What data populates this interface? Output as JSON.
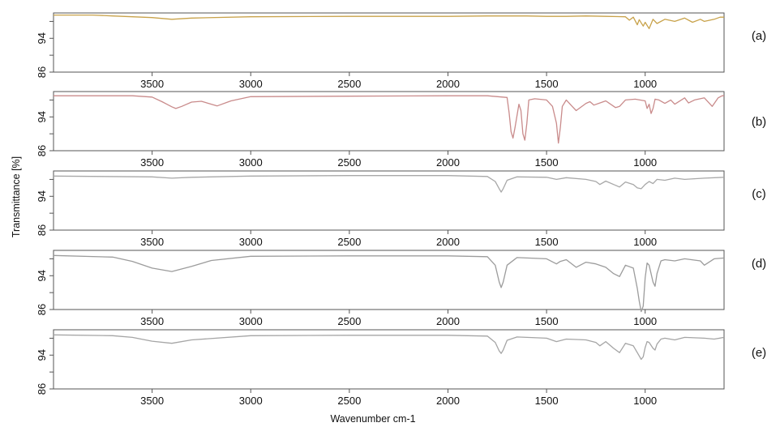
{
  "chart_data": {
    "type": "line",
    "title": "",
    "xlabel": "Wavenumber cm-1",
    "ylabel": "Transmittance [%]",
    "xlim": [
      4000,
      600
    ],
    "ylim": [
      86,
      100
    ],
    "x_ticks": [
      3500,
      3000,
      2500,
      2000,
      1500,
      1000
    ],
    "y_ticks": [
      94,
      86
    ],
    "grid": false,
    "panels": [
      {
        "label": "(a)",
        "color": "#c8a24a",
        "x": [
          4000,
          3800,
          3700,
          3500,
          3400,
          3300,
          3000,
          2500,
          2000,
          1800,
          1600,
          1500,
          1400,
          1300,
          1200,
          1100,
          1080,
          1060,
          1040,
          1030,
          1010,
          1000,
          980,
          960,
          940,
          900,
          850,
          800,
          760,
          720,
          700,
          650,
          620,
          600
        ],
        "y": [
          99.5,
          99.5,
          99.3,
          98.9,
          98.5,
          98.8,
          99.1,
          99.2,
          99.2,
          99.3,
          99.3,
          99.2,
          99.2,
          99.3,
          99.2,
          99.1,
          98.3,
          99.0,
          97.2,
          98.4,
          96.9,
          97.8,
          96.3,
          98.5,
          97.5,
          98.5,
          98.0,
          98.8,
          97.8,
          98.5,
          98.0,
          98.5,
          99.0,
          99.0
        ]
      },
      {
        "label": "(b)",
        "color": "#c98b8b",
        "x": [
          4000,
          3600,
          3500,
          3450,
          3400,
          3380,
          3350,
          3300,
          3250,
          3200,
          3170,
          3100,
          3000,
          2500,
          2000,
          1800,
          1700,
          1690,
          1680,
          1670,
          1660,
          1640,
          1630,
          1620,
          1610,
          1600,
          1590,
          1560,
          1500,
          1470,
          1450,
          1440,
          1430,
          1420,
          1400,
          1370,
          1350,
          1300,
          1280,
          1260,
          1200,
          1150,
          1130,
          1100,
          1050,
          1000,
          990,
          980,
          970,
          960,
          950,
          930,
          900,
          870,
          850,
          800,
          780,
          750,
          700,
          660,
          630,
          610,
          600
        ],
        "y": [
          99.0,
          99.0,
          98.7,
          97.6,
          96.4,
          96.0,
          96.5,
          97.5,
          97.7,
          97.0,
          96.6,
          97.8,
          98.8,
          98.9,
          99.0,
          99.0,
          98.6,
          95.0,
          90.5,
          89.0,
          91.5,
          97.0,
          95.5,
          90.0,
          88.5,
          92.5,
          98.0,
          98.3,
          98.0,
          96.5,
          92.5,
          87.8,
          91.5,
          96.5,
          98.0,
          96.5,
          95.5,
          97.2,
          97.6,
          96.8,
          97.8,
          96.2,
          96.5,
          98.0,
          98.2,
          97.8,
          96.0,
          97.0,
          94.8,
          96.0,
          98.2,
          98.0,
          97.2,
          98.0,
          97.0,
          98.5,
          97.3,
          98.0,
          98.5,
          96.5,
          98.5,
          99.0,
          99.0
        ]
      },
      {
        "label": "(c)",
        "color": "#a8a8a8",
        "x": [
          4000,
          3500,
          3400,
          3300,
          3000,
          2500,
          2000,
          1800,
          1760,
          1740,
          1730,
          1720,
          1700,
          1650,
          1500,
          1450,
          1400,
          1300,
          1250,
          1230,
          1200,
          1160,
          1130,
          1100,
          1060,
          1040,
          1020,
          1000,
          980,
          960,
          940,
          900,
          850,
          800,
          700,
          600
        ],
        "y": [
          98.8,
          98.6,
          98.3,
          98.5,
          98.8,
          98.9,
          98.9,
          98.7,
          97.5,
          95.8,
          95.0,
          95.8,
          97.8,
          98.6,
          98.5,
          98.0,
          98.4,
          98.0,
          97.5,
          96.8,
          97.6,
          96.8,
          96.2,
          97.4,
          96.8,
          96.0,
          95.8,
          96.8,
          97.5,
          97.0,
          98.0,
          97.8,
          98.3,
          98.0,
          98.3,
          98.5
        ]
      },
      {
        "label": "(d)",
        "color": "#9c9c9c",
        "x": [
          4000,
          3700,
          3600,
          3500,
          3400,
          3300,
          3200,
          3000,
          2500,
          2000,
          1800,
          1760,
          1740,
          1730,
          1720,
          1700,
          1650,
          1500,
          1450,
          1430,
          1400,
          1350,
          1300,
          1250,
          1200,
          1160,
          1130,
          1100,
          1060,
          1040,
          1030,
          1020,
          1010,
          1000,
          990,
          980,
          960,
          950,
          940,
          920,
          900,
          850,
          800,
          720,
          700,
          650,
          600
        ],
        "y": [
          98.8,
          98.4,
          97.4,
          95.8,
          95.0,
          96.2,
          97.6,
          98.6,
          98.7,
          98.7,
          98.5,
          96.5,
          92.5,
          91.2,
          92.5,
          96.5,
          98.3,
          98.0,
          96.8,
          97.4,
          97.8,
          96.0,
          97.2,
          96.8,
          96.0,
          94.5,
          93.8,
          96.5,
          95.8,
          91.0,
          88.0,
          85.5,
          86.8,
          93.5,
          97.0,
          96.5,
          92.5,
          91.5,
          94.5,
          97.5,
          97.8,
          97.5,
          98.0,
          97.5,
          96.5,
          98.0,
          98.2
        ]
      },
      {
        "label": "(e)",
        "color": "#a5a5a5",
        "x": [
          4000,
          3700,
          3600,
          3500,
          3400,
          3300,
          3000,
          2500,
          2000,
          1800,
          1760,
          1740,
          1730,
          1720,
          1700,
          1650,
          1500,
          1450,
          1400,
          1300,
          1250,
          1230,
          1200,
          1160,
          1130,
          1100,
          1060,
          1040,
          1030,
          1020,
          1010,
          1000,
          990,
          980,
          960,
          950,
          940,
          920,
          900,
          850,
          800,
          700,
          650,
          600
        ],
        "y": [
          98.8,
          98.6,
          98.2,
          97.3,
          96.8,
          97.6,
          98.6,
          98.7,
          98.7,
          98.5,
          97.0,
          95.0,
          94.4,
          95.2,
          97.5,
          98.3,
          98.0,
          97.2,
          97.8,
          97.6,
          97.0,
          96.2,
          97.2,
          95.6,
          94.6,
          96.8,
          96.2,
          94.6,
          93.8,
          93.0,
          93.6,
          95.8,
          97.2,
          97.0,
          95.6,
          95.2,
          96.6,
          97.8,
          98.0,
          97.6,
          98.2,
          98.0,
          97.8,
          98.2
        ]
      }
    ]
  }
}
